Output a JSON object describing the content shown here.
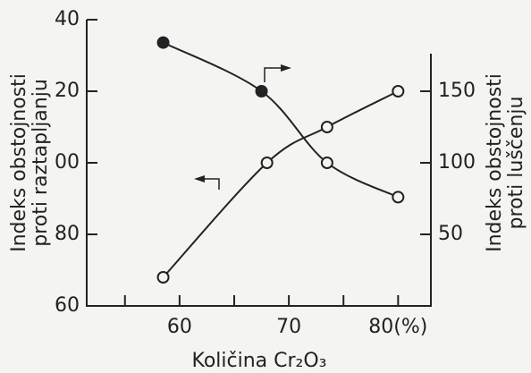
{
  "chart_data": {
    "type": "line",
    "x_label": "Količina Cr₂O₃",
    "y_label": [
      "Indeks obstojnosti",
      "proti raztapljanju"
    ],
    "y2_label": [
      "Indeks obstojnosti",
      "proti luščenju"
    ],
    "xlim": [
      51.5,
      83
    ],
    "xticks": [
      {
        "value": 60,
        "label": "60"
      },
      {
        "value": 70,
        "label": "70"
      },
      {
        "value": 80,
        "label": "80(%)"
      }
    ],
    "xminor": [
      55,
      65,
      75
    ],
    "ylim": [
      60,
      140
    ],
    "yticks": [
      {
        "value": 140,
        "label": "40"
      },
      {
        "value": 120,
        "label": "20"
      },
      {
        "value": 100,
        "label": "00"
      },
      80,
      60
    ],
    "y2lim": [
      0,
      200
    ],
    "y2ticks": [
      50,
      100,
      150
    ],
    "series": [
      {
        "color": "#222",
        "x": [
          58.5,
          68,
          73.5,
          80
        ],
        "values": [
          68,
          100,
          110,
          120
        ],
        "markers": [
          "open",
          "open",
          "open",
          "open"
        ]
      },
      {
        "color": "#222",
        "axis": "y2",
        "x": [
          58.5,
          67.5,
          73.5,
          80
        ],
        "values": [
          184,
          150,
          100,
          76
        ],
        "markers": [
          "filled",
          "filled",
          "open",
          "open"
        ]
      }
    ]
  }
}
